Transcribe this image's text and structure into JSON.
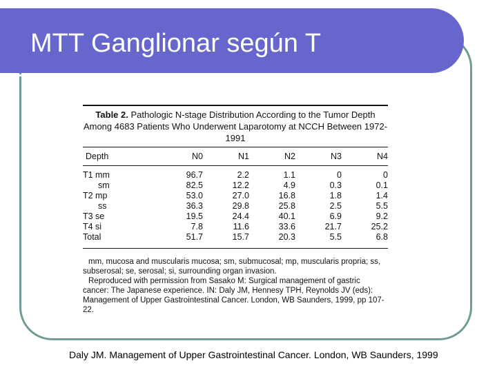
{
  "slide": {
    "title": "MTT Ganglionar según T",
    "source": "Daly JM. Management of Upper Gastrointestinal Cancer. London, WB Saunders, 1999"
  },
  "table": {
    "caption_label": "Table 2.",
    "caption_text": "Pathologic N-stage Distribution According to the Tumor Depth Among 4683 Patients Who Underwent Laparotomy at NCCH Between 1972-1991",
    "headers": [
      "Depth",
      "N0",
      "N1",
      "N2",
      "N3",
      "N4"
    ],
    "rows": [
      {
        "depth": "T1 mm",
        "values": [
          "96.7",
          "2.2",
          "1.1",
          "0",
          "0"
        ]
      },
      {
        "depth": "sm",
        "values": [
          "82.5",
          "12.2",
          "4.9",
          "0.3",
          "0.1"
        ]
      },
      {
        "depth": "T2 mp",
        "values": [
          "53.0",
          "27.0",
          "16.8",
          "1.8",
          "1.4"
        ]
      },
      {
        "depth": "ss",
        "values": [
          "36.3",
          "29.8",
          "25.8",
          "2.5",
          "5.5"
        ]
      },
      {
        "depth": "T3 se",
        "values": [
          "19.5",
          "24.4",
          "40.1",
          "6.9",
          "9.2"
        ]
      },
      {
        "depth": "T4 si",
        "values": [
          "7.8",
          "11.6",
          "33.6",
          "21.7",
          "25.2"
        ]
      },
      {
        "depth": "Total",
        "values": [
          "51.7",
          "15.7",
          "20.3",
          "5.5",
          "6.8"
        ]
      }
    ],
    "footnote_abbrev": "mm, mucosa and muscularis mucosa; sm, submucosal; mp, muscularis propria; ss, subserosal; se, serosal; si, surrounding organ invasion.",
    "footnote_reproduced": "Reproduced with permission from Sasako M: Surgical management of gastric cancer: The Japanese experience. IN: Daly JM, Hennesy TPH, Reynolds JV (eds): Management of Upper Gastrointestinal Cancer. London, WB Saunders, 1999, pp 107-22."
  }
}
